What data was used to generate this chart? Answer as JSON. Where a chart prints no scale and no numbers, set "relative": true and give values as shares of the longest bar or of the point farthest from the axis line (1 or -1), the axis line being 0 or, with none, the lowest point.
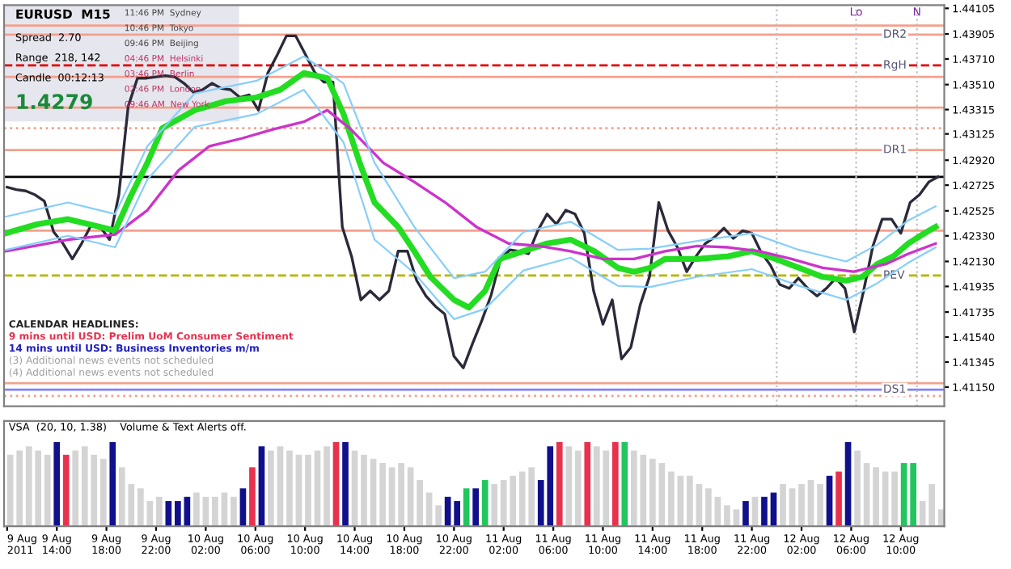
{
  "chart_data": [
    {
      "type": "line",
      "title": "EURUSD  M15",
      "series": [
        {
          "color": "#2a2a3a",
          "x": [
            "2011-08-09T10:00",
            "2011-08-09T10:45",
            "2011-08-09T11:30",
            "2011-08-09T12:15",
            "2011-08-09T13:00",
            "2011-08-09T13:45",
            "2011-08-09T14:30",
            "2011-08-09T15:15",
            "2011-08-09T16:00",
            "2011-08-09T16:45",
            "2011-08-09T17:30",
            "2011-08-09T18:15",
            "2011-08-09T19:00",
            "2011-08-09T19:45",
            "2011-08-09T20:30",
            "2011-08-09T21:15",
            "2011-08-09T22:00",
            "2011-08-09T22:45",
            "2011-08-09T23:30",
            "2011-08-10T00:15",
            "2011-08-10T01:00",
            "2011-08-10T01:45",
            "2011-08-10T02:30",
            "2011-08-10T03:15",
            "2011-08-10T04:00",
            "2011-08-10T04:45",
            "2011-08-10T05:30",
            "2011-08-10T06:15",
            "2011-08-10T07:00",
            "2011-08-10T07:45",
            "2011-08-10T08:30",
            "2011-08-10T09:15",
            "2011-08-10T10:00",
            "2011-08-10T10:45",
            "2011-08-10T11:30",
            "2011-08-10T12:15",
            "2011-08-10T13:00",
            "2011-08-10T13:45",
            "2011-08-10T14:30",
            "2011-08-10T15:15",
            "2011-08-10T16:00",
            "2011-08-10T16:45",
            "2011-08-10T17:30",
            "2011-08-10T18:15",
            "2011-08-10T19:00",
            "2011-08-10T19:45",
            "2011-08-10T20:30",
            "2011-08-10T21:15",
            "2011-08-10T22:00",
            "2011-08-10T22:45",
            "2011-08-10T23:30",
            "2011-08-11T00:15",
            "2011-08-11T01:00",
            "2011-08-11T01:45",
            "2011-08-11T02:30",
            "2011-08-11T03:15",
            "2011-08-11T04:00",
            "2011-08-11T04:45",
            "2011-08-11T05:30",
            "2011-08-11T06:15",
            "2011-08-11T07:00",
            "2011-08-11T07:45",
            "2011-08-11T08:30",
            "2011-08-11T09:15",
            "2011-08-11T10:00",
            "2011-08-11T10:45",
            "2011-08-11T11:30",
            "2011-08-11T12:15",
            "2011-08-11T13:00",
            "2011-08-11T13:45",
            "2011-08-11T14:30",
            "2011-08-11T15:15",
            "2011-08-11T16:00",
            "2011-08-11T16:45",
            "2011-08-11T17:30",
            "2011-08-11T18:15",
            "2011-08-11T19:00",
            "2011-08-11T19:45",
            "2011-08-11T20:30",
            "2011-08-11T21:15",
            "2011-08-11T22:00",
            "2011-08-11T22:45",
            "2011-08-11T23:30",
            "2011-08-12T00:15",
            "2011-08-12T01:00",
            "2011-08-12T01:45",
            "2011-08-12T02:30",
            "2011-08-12T03:15",
            "2011-08-12T04:00",
            "2011-08-12T04:45",
            "2011-08-12T05:30",
            "2011-08-12T06:15",
            "2011-08-12T07:00",
            "2011-08-12T07:45",
            "2011-08-12T08:30",
            "2011-08-12T09:15",
            "2011-08-12T10:00",
            "2011-08-12T10:45",
            "2011-08-12T11:30",
            "2011-08-12T12:15",
            "2011-08-12T13:00"
          ],
          "values": [
            1.4271,
            1.4269,
            1.4268,
            1.4265,
            1.426,
            1.4236,
            1.4227,
            1.4215,
            1.4227,
            1.4241,
            1.424,
            1.423,
            1.4265,
            1.4334,
            1.4356,
            1.4356,
            1.4357,
            1.4358,
            1.4357,
            1.4352,
            1.4345,
            1.4347,
            1.4352,
            1.4348,
            1.4347,
            1.4341,
            1.4343,
            1.4331,
            1.436,
            1.4374,
            1.4389,
            1.4389,
            1.4375,
            1.4361,
            1.4353,
            1.4353,
            1.424,
            1.4217,
            1.4183,
            1.419,
            1.4183,
            1.419,
            1.4221,
            1.4221,
            1.4198,
            1.4186,
            1.4178,
            1.4172,
            1.4139,
            1.413,
            1.4149,
            1.4167,
            1.4187,
            1.4215,
            1.4222,
            1.4221,
            1.4219,
            1.4237,
            1.425,
            1.4242,
            1.4253,
            1.425,
            1.4235,
            1.419,
            1.4164,
            1.4183,
            1.4137,
            1.4146,
            1.4179,
            1.4201,
            1.4259,
            1.4237,
            1.4224,
            1.4205,
            1.4217,
            1.4227,
            1.4232,
            1.4239,
            1.4231,
            1.4237,
            1.4235,
            1.422,
            1.421,
            1.4195,
            1.4192,
            1.42,
            1.4192,
            1.4186,
            1.4192,
            1.42,
            1.4192,
            1.4158,
            1.419,
            1.4225,
            1.4246,
            1.4246,
            1.4235,
            1.4259,
            1.4265,
            1.4275,
            1.4279
          ]
        },
        {
          "color": "#22dd22",
          "x": [
            "2011-08-09T09:54",
            "2011-08-09T12:24",
            "2011-08-09T14:54",
            "2011-08-09T17:30",
            "2011-08-09T18:42",
            "2011-08-09T20:00",
            "2011-08-09T21:18",
            "2011-08-09T22:30",
            "2011-08-10T01:06",
            "2011-08-10T03:36",
            "2011-08-10T06:06",
            "2011-08-10T08:00",
            "2011-08-10T09:54",
            "2011-08-10T11:48",
            "2011-08-10T13:06",
            "2011-08-10T14:24",
            "2011-08-10T15:36",
            "2011-08-10T17:30",
            "2011-08-10T18:48",
            "2011-08-10T20:06",
            "2011-08-10T22:00",
            "2011-08-10T23:12",
            "2011-08-11T00:30",
            "2011-08-11T01:42",
            "2011-08-11T03:36",
            "2011-08-11T05:30",
            "2011-08-11T07:24",
            "2011-08-11T09:18",
            "2011-08-11T11:12",
            "2011-08-11T12:30",
            "2011-08-11T13:48",
            "2011-08-11T15:00",
            "2011-08-11T17:36",
            "2011-08-11T20:06",
            "2011-08-11T22:00",
            "2011-08-11T23:54",
            "2011-08-12T01:48",
            "2011-08-12T03:42",
            "2011-08-12T05:36",
            "2011-08-12T06:54",
            "2011-08-12T08:06",
            "2011-08-12T09:24",
            "2011-08-12T10:36",
            "2011-08-12T11:54",
            "2011-08-12T12:48"
          ],
          "values": [
            1.4235,
            1.4242,
            1.4246,
            1.424,
            1.4237,
            1.4265,
            1.429,
            1.4317,
            1.4331,
            1.4338,
            1.4341,
            1.4347,
            1.436,
            1.4356,
            1.4328,
            1.429,
            1.4259,
            1.424,
            1.4221,
            1.4201,
            1.4183,
            1.4177,
            1.419,
            1.4215,
            1.4221,
            1.4227,
            1.423,
            1.4221,
            1.4208,
            1.4205,
            1.4208,
            1.4215,
            1.4215,
            1.4217,
            1.4221,
            1.4215,
            1.4208,
            1.4201,
            1.4198,
            1.4201,
            1.4211,
            1.4217,
            1.4227,
            1.4235,
            1.424
          ]
        },
        {
          "color": "#cc33cc",
          "x": [
            "2011-08-09T09:54",
            "2011-08-09T14:54",
            "2011-08-09T18:42",
            "2011-08-09T21:18",
            "2011-08-09T23:48",
            "2011-08-10T02:18",
            "2011-08-10T04:54",
            "2011-08-10T07:24",
            "2011-08-10T09:54",
            "2011-08-10T11:48",
            "2011-08-10T13:42",
            "2011-08-10T16:18",
            "2011-08-10T18:48",
            "2011-08-10T21:18",
            "2011-08-10T23:48",
            "2011-08-11T02:24",
            "2011-08-11T04:54",
            "2011-08-11T07:24",
            "2011-08-11T10:00",
            "2011-08-11T12:30",
            "2011-08-11T15:00",
            "2011-08-11T17:36",
            "2011-08-11T20:06",
            "2011-08-11T22:36",
            "2011-08-12T01:12",
            "2011-08-12T03:42",
            "2011-08-12T06:12",
            "2011-08-12T08:48",
            "2011-08-12T10:36",
            "2011-08-12T12:48"
          ],
          "values": [
            1.4221,
            1.423,
            1.4234,
            1.4253,
            1.4284,
            1.4303,
            1.4309,
            1.4316,
            1.4322,
            1.4331,
            1.4316,
            1.429,
            1.4275,
            1.4259,
            1.424,
            1.4227,
            1.4225,
            1.4221,
            1.4215,
            1.4215,
            1.4221,
            1.4225,
            1.4224,
            1.4221,
            1.4215,
            1.4208,
            1.4205,
            1.4211,
            1.4219,
            1.4227
          ]
        },
        {
          "color": "#87cefa",
          "x": [
            "2011-08-09T09:54",
            "2011-08-09T14:54",
            "2011-08-09T18:42",
            "2011-08-09T21:18",
            "2011-08-10T01:06",
            "2011-08-10T06:06",
            "2011-08-10T09:54",
            "2011-08-10T13:06",
            "2011-08-10T15:36",
            "2011-08-10T18:48",
            "2011-08-10T22:00",
            "2011-08-11T00:30",
            "2011-08-11T03:36",
            "2011-08-11T07:24",
            "2011-08-11T11:12",
            "2011-08-11T13:48",
            "2011-08-11T17:36",
            "2011-08-11T22:00",
            "2011-08-12T01:48",
            "2011-08-12T05:36",
            "2011-08-12T08:06",
            "2011-08-12T10:36",
            "2011-08-12T12:48"
          ],
          "values": [
            1.4248,
            1.4259,
            1.425,
            1.4303,
            1.4344,
            1.4354,
            1.4373,
            1.4352,
            1.429,
            1.424,
            1.42,
            1.4205,
            1.4236,
            1.4244,
            1.4222,
            1.4223,
            1.4229,
            1.4235,
            1.4222,
            1.4213,
            1.4226,
            1.4245,
            1.4256
          ]
        },
        {
          "color": "#87cefa",
          "x": [
            "2011-08-09T09:54",
            "2011-08-09T14:54",
            "2011-08-09T18:42",
            "2011-08-09T21:18",
            "2011-08-10T01:06",
            "2011-08-10T06:06",
            "2011-08-10T09:54",
            "2011-08-10T13:06",
            "2011-08-10T15:36",
            "2011-08-10T18:48",
            "2011-08-10T22:00",
            "2011-08-11T00:30",
            "2011-08-11T03:36",
            "2011-08-11T07:24",
            "2011-08-11T11:12",
            "2011-08-11T13:48",
            "2011-08-11T17:36",
            "2011-08-11T22:00",
            "2011-08-12T01:48",
            "2011-08-12T05:36",
            "2011-08-12T08:06",
            "2011-08-12T10:36",
            "2011-08-12T12:48"
          ],
          "values": [
            1.4222,
            1.4233,
            1.4224,
            1.4277,
            1.4318,
            1.4328,
            1.4347,
            1.4306,
            1.423,
            1.4204,
            1.4168,
            1.4176,
            1.4206,
            1.4216,
            1.4194,
            1.4193,
            1.4201,
            1.4207,
            1.4194,
            1.4183,
            1.4196,
            1.4212,
            1.4224
          ]
        }
      ],
      "xlim": [
        "2011-08-09T09:45",
        "2011-08-12T13:30"
      ],
      "ylim": [
        1.41,
        1.4413
      ],
      "yticks": [
        1.44105,
        1.43905,
        {
          "value": 1.4371,
          "label": "1.43710"
        },
        {
          "value": 1.4351,
          "label": "1.43510"
        },
        1.43315,
        1.43125,
        {
          "value": 1.4292,
          "label": "1.42920"
        },
        1.42725,
        1.42525,
        {
          "value": 1.4233,
          "label": "1.42330"
        },
        {
          "value": 1.4213,
          "label": "1.42130"
        },
        1.41935,
        1.41735,
        {
          "value": 1.4154,
          "label": "1.41540"
        },
        1.41345,
        {
          "value": 1.4115,
          "label": "1.41150"
        }
      ],
      "tick_labels": "y",
      "ref_lines": [
        {
          "axis": "y",
          "value": 1.4397,
          "color": "#f4a08c"
        },
        {
          "axis": "y",
          "value": 1.4357,
          "color": "#f4a08c"
        },
        {
          "axis": "y",
          "value": 1.4333,
          "color": "#f4a08c"
        },
        {
          "axis": "y",
          "value": 1.4317,
          "color": "#f4a08c",
          "line_style": "dotted"
        },
        {
          "axis": "y",
          "value": 1.4237,
          "color": "#f4a08c"
        },
        {
          "axis": "y",
          "value": 1.4118,
          "color": "#f4a08c"
        },
        {
          "axis": "y",
          "value": 1.4108,
          "color": "#f4a08c",
          "line_style": "dotted"
        },
        {
          "axis": "y",
          "value": 1.4279,
          "color": "#000000"
        },
        {
          "axis": "y",
          "value": 1.439,
          "color": "#f4a08c",
          "label": "DR2"
        },
        {
          "axis": "y",
          "value": 1.4366,
          "color": "#e00000",
          "line_style": "dashed",
          "label": "RgH"
        },
        {
          "axis": "y",
          "value": 1.43,
          "color": "#f4a08c",
          "label": "DR1"
        },
        {
          "axis": "y",
          "value": 1.4202,
          "color": "#b5b500",
          "line_style": "dashed",
          "label": "PEV"
        },
        {
          "axis": "y",
          "value": 1.4113,
          "color": "#8080ff",
          "label": "DS1"
        },
        {
          "axis": "x",
          "value": "2011-08-12T00:00",
          "color": "#c0c0c0",
          "line_style": "dotted"
        },
        {
          "axis": "x",
          "value": "2011-08-12T06:24",
          "color": "#c0c0c0",
          "line_style": "dotted",
          "label": "Lo"
        },
        {
          "axis": "x",
          "value": "2011-08-12T11:18",
          "color": "#c0c0c0",
          "line_style": "dotted",
          "label": "N"
        }
      ],
      "annotations": [
        "Spread  2.70",
        "Range  218, 142",
        "Candle  00:12:13",
        "1.4279",
        "11:46 PM  Sydney",
        "10:46 PM  Tokyo",
        "09:46 PM  Beijing",
        "04:46 PM  Helsinki",
        "03:46 PM  Berlin",
        "02:46 PM  London",
        "09:46 AM  New York",
        "CALENDAR HEADLINES:",
        "9 mins until USD: Prelim UoM Consumer Sentiment",
        "14 mins until USD: Business Inventories m/m",
        "(3) Additional news events not scheduled",
        "(4) Additional news events not scheduled"
      ]
    },
    {
      "type": "bar",
      "title": "VSA  (20, 10, 1.38)    Volume & Text Alerts off.",
      "relative": true,
      "tick_labels": "x",
      "x": [
        "2011-08-09T10:15",
        "2011-08-09T11:00",
        "2011-08-09T11:45",
        "2011-08-09T12:30",
        "2011-08-09T13:15",
        "2011-08-09T14:00",
        "2011-08-09T14:45",
        "2011-08-09T15:30",
        "2011-08-09T16:15",
        "2011-08-09T17:00",
        "2011-08-09T17:45",
        "2011-08-09T18:30",
        "2011-08-09T19:15",
        "2011-08-09T20:00",
        "2011-08-09T20:45",
        "2011-08-09T21:30",
        "2011-08-09T22:15",
        "2011-08-09T23:00",
        "2011-08-09T23:45",
        "2011-08-10T00:30",
        "2011-08-10T01:15",
        "2011-08-10T02:00",
        "2011-08-10T02:45",
        "2011-08-10T03:30",
        "2011-08-10T04:15",
        "2011-08-10T05:00",
        "2011-08-10T05:45",
        "2011-08-10T06:30",
        "2011-08-10T07:15",
        "2011-08-10T08:00",
        "2011-08-10T08:45",
        "2011-08-10T09:30",
        "2011-08-10T10:15",
        "2011-08-10T11:00",
        "2011-08-10T11:45",
        "2011-08-10T12:30",
        "2011-08-10T13:15",
        "2011-08-10T14:00",
        "2011-08-10T14:45",
        "2011-08-10T15:30",
        "2011-08-10T16:15",
        "2011-08-10T17:00",
        "2011-08-10T17:45",
        "2011-08-10T18:30",
        "2011-08-10T19:15",
        "2011-08-10T20:00",
        "2011-08-10T20:45",
        "2011-08-10T21:30",
        "2011-08-10T22:15",
        "2011-08-10T23:00",
        "2011-08-10T23:45",
        "2011-08-11T00:30",
        "2011-08-11T01:15",
        "2011-08-11T02:00",
        "2011-08-11T02:45",
        "2011-08-11T03:30",
        "2011-08-11T04:15",
        "2011-08-11T05:00",
        "2011-08-11T05:45",
        "2011-08-11T06:30",
        "2011-08-11T07:15",
        "2011-08-11T08:00",
        "2011-08-11T08:45",
        "2011-08-11T09:30",
        "2011-08-11T10:15",
        "2011-08-11T11:00",
        "2011-08-11T11:45",
        "2011-08-11T12:30",
        "2011-08-11T13:15",
        "2011-08-11T14:00",
        "2011-08-11T14:45",
        "2011-08-11T15:30",
        "2011-08-11T16:15",
        "2011-08-11T17:00",
        "2011-08-11T17:45",
        "2011-08-11T18:30",
        "2011-08-11T19:15",
        "2011-08-11T20:00",
        "2011-08-11T20:45",
        "2011-08-11T21:30",
        "2011-08-11T22:15",
        "2011-08-11T23:00",
        "2011-08-11T23:45",
        "2011-08-12T00:30",
        "2011-08-12T01:15",
        "2011-08-12T02:00",
        "2011-08-12T02:45",
        "2011-08-12T03:30",
        "2011-08-12T04:15",
        "2011-08-12T05:00",
        "2011-08-12T05:45",
        "2011-08-12T06:30",
        "2011-08-12T07:15",
        "2011-08-12T08:00",
        "2011-08-12T08:45",
        "2011-08-12T09:30",
        "2011-08-12T10:15",
        "2011-08-12T11:00",
        "2011-08-12T11:45",
        "2011-08-12T12:30",
        "2011-08-12T13:15"
      ],
      "values": [
        0.85,
        0.9,
        0.95,
        0.9,
        0.85,
        1,
        0.85,
        0.9,
        0.95,
        0.85,
        0.8,
        1,
        0.7,
        0.5,
        0.45,
        0.3,
        0.35,
        0.3,
        0.3,
        0.35,
        0.4,
        0.35,
        0.35,
        0.4,
        0.35,
        0.45,
        0.7,
        0.95,
        0.9,
        0.95,
        0.9,
        0.85,
        0.85,
        0.9,
        0.95,
        1,
        1,
        0.9,
        0.85,
        0.8,
        0.75,
        0.7,
        0.75,
        0.7,
        0.55,
        0.4,
        0.25,
        0.35,
        0.3,
        0.45,
        0.45,
        0.55,
        0.5,
        0.55,
        0.6,
        0.65,
        0.7,
        0.55,
        0.95,
        1,
        0.95,
        0.9,
        1,
        0.95,
        0.9,
        1,
        1,
        0.9,
        0.85,
        0.8,
        0.75,
        0.65,
        0.6,
        0.6,
        0.5,
        0.45,
        0.35,
        0.25,
        0.2,
        0.3,
        0.35,
        0.35,
        0.4,
        0.5,
        0.45,
        0.5,
        0.55,
        0.5,
        0.6,
        0.65,
        1,
        0.9,
        0.75,
        0.7,
        0.65,
        0.65,
        0.75,
        0.75,
        0.3,
        0.5,
        0.2
      ],
      "colors": [
        "#d4d4d4",
        "#d4d4d4",
        "#d4d4d4",
        "#d4d4d4",
        "#d4d4d4",
        "#10108c",
        "#e8314d",
        "#d4d4d4",
        "#d4d4d4",
        "#d4d4d4",
        "#d4d4d4",
        "#10108c",
        "#d4d4d4",
        "#d4d4d4",
        "#d4d4d4",
        "#d4d4d4",
        "#d4d4d4",
        "#10108c",
        "#10108c",
        "#10108c",
        "#d4d4d4",
        "#d4d4d4",
        "#d4d4d4",
        "#d4d4d4",
        "#d4d4d4",
        "#10108c",
        "#e8314d",
        "#10108c",
        "#d4d4d4",
        "#d4d4d4",
        "#d4d4d4",
        "#d4d4d4",
        "#d4d4d4",
        "#d4d4d4",
        "#d4d4d4",
        "#e8314d",
        "#10108c",
        "#d4d4d4",
        "#d4d4d4",
        "#d4d4d4",
        "#d4d4d4",
        "#d4d4d4",
        "#d4d4d4",
        "#d4d4d4",
        "#d4d4d4",
        "#d4d4d4",
        "#d4d4d4",
        "#10108c",
        "#10108c",
        "#22c55e",
        "#10108c",
        "#22c55e",
        "#d4d4d4",
        "#d4d4d4",
        "#d4d4d4",
        "#d4d4d4",
        "#d4d4d4",
        "#10108c",
        "#10108c",
        "#e8314d",
        "#d4d4d4",
        "#d4d4d4",
        "#e8314d",
        "#d4d4d4",
        "#d4d4d4",
        "#e8314d",
        "#22c55e",
        "#d4d4d4",
        "#d4d4d4",
        "#d4d4d4",
        "#d4d4d4",
        "#d4d4d4",
        "#d4d4d4",
        "#d4d4d4",
        "#d4d4d4",
        "#d4d4d4",
        "#d4d4d4",
        "#d4d4d4",
        "#d4d4d4",
        "#10108c",
        "#d4d4d4",
        "#10108c",
        "#10108c",
        "#d4d4d4",
        "#d4d4d4",
        "#d4d4d4",
        "#d4d4d4",
        "#d4d4d4",
        "#10108c",
        "#e8314d",
        "#10108c",
        "#d4d4d4",
        "#d4d4d4",
        "#d4d4d4",
        "#d4d4d4",
        "#d4d4d4",
        "#22c55e",
        "#22c55e",
        "#d4d4d4",
        "#d4d4d4",
        "#d4d4d4"
      ],
      "xlim": [
        "2011-08-09T09:45",
        "2011-08-12T13:30"
      ],
      "xticks": [
        {
          "value": "2011-08-09T10:00",
          "label": "9 Aug 2011"
        },
        {
          "value": "2011-08-09T14:00",
          "label": "9 Aug 14:00"
        },
        {
          "value": "2011-08-09T18:00",
          "label": "9 Aug 18:00"
        },
        {
          "value": "2011-08-09T22:00",
          "label": "9 Aug 22:00"
        },
        {
          "value": "2011-08-10T02:00",
          "label": "10 Aug 02:00"
        },
        {
          "value": "2011-08-10T06:00",
          "label": "10 Aug 06:00"
        },
        {
          "value": "2011-08-10T10:00",
          "label": "10 Aug 10:00"
        },
        {
          "value": "2011-08-10T14:00",
          "label": "10 Aug 14:00"
        },
        {
          "value": "2011-08-10T18:00",
          "label": "10 Aug 18:00"
        },
        {
          "value": "2011-08-10T22:00",
          "label": "10 Aug 22:00"
        },
        {
          "value": "2011-08-11T02:00",
          "label": "11 Aug 02:00"
        },
        {
          "value": "2011-08-11T06:00",
          "label": "11 Aug 06:00"
        },
        {
          "value": "2011-08-11T10:00",
          "label": "11 Aug 10:00"
        },
        {
          "value": "2011-08-11T14:00",
          "label": "11 Aug 14:00"
        },
        {
          "value": "2011-08-11T18:00",
          "label": "11 Aug 18:00"
        },
        {
          "value": "2011-08-11T22:00",
          "label": "11 Aug 22:00"
        },
        {
          "value": "2011-08-12T02:00",
          "label": "12 Aug 02:00"
        },
        {
          "value": "2011-08-12T06:00",
          "label": "12 Aug 06:00"
        },
        {
          "value": "2011-08-12T10:00",
          "label": "12 Aug 10:00"
        }
      ]
    }
  ]
}
